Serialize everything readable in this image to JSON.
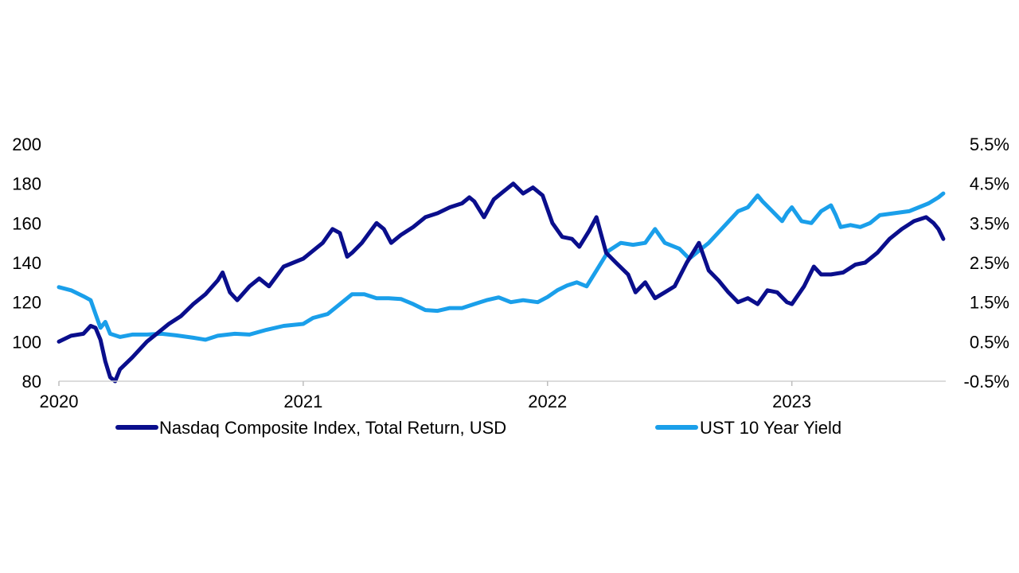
{
  "chart_data": {
    "type": "line",
    "title": "",
    "xlabel": "",
    "ylabel": "",
    "x_tick_labels": [
      "2020",
      "2021",
      "2022",
      "2023"
    ],
    "x_ticks": [
      2020,
      2021,
      2022,
      2023
    ],
    "xlim": [
      2020,
      2023.63
    ],
    "y_left": {
      "ylim": [
        80,
        200
      ],
      "ticks": [
        80,
        100,
        120,
        140,
        160,
        180,
        200
      ],
      "tick_labels": [
        "80",
        "100",
        "120",
        "140",
        "160",
        "180",
        "200"
      ]
    },
    "y_right": {
      "ylim": [
        -0.5,
        5.5
      ],
      "ticks": [
        -0.5,
        0.5,
        1.5,
        2.5,
        3.5,
        4.5,
        5.5
      ],
      "tick_labels": [
        "-0.5%",
        "0.5%",
        "1.5%",
        "2.5%",
        "3.5%",
        "4.5%",
        "5.5%"
      ]
    },
    "legend_position": "bottom",
    "series": [
      {
        "name": "Nasdaq Composite Index, Total Return, USD",
        "axis": "left",
        "color": "#0A0E8C",
        "points": [
          [
            2020.0,
            100
          ],
          [
            2020.05,
            103
          ],
          [
            2020.1,
            104
          ],
          [
            2020.13,
            108
          ],
          [
            2020.15,
            107
          ],
          [
            2020.17,
            101
          ],
          [
            2020.19,
            90
          ],
          [
            2020.21,
            82
          ],
          [
            2020.23,
            80
          ],
          [
            2020.25,
            86
          ],
          [
            2020.3,
            92
          ],
          [
            2020.36,
            100
          ],
          [
            2020.4,
            104
          ],
          [
            2020.45,
            109
          ],
          [
            2020.5,
            113
          ],
          [
            2020.55,
            119
          ],
          [
            2020.6,
            124
          ],
          [
            2020.65,
            131
          ],
          [
            2020.67,
            135
          ],
          [
            2020.7,
            125
          ],
          [
            2020.73,
            121
          ],
          [
            2020.78,
            128
          ],
          [
            2020.82,
            132
          ],
          [
            2020.86,
            128
          ],
          [
            2020.92,
            138
          ],
          [
            2021.0,
            142
          ],
          [
            2021.04,
            146
          ],
          [
            2021.08,
            150
          ],
          [
            2021.12,
            157
          ],
          [
            2021.15,
            155
          ],
          [
            2021.18,
            143
          ],
          [
            2021.2,
            145
          ],
          [
            2021.24,
            150
          ],
          [
            2021.27,
            155
          ],
          [
            2021.3,
            160
          ],
          [
            2021.33,
            157
          ],
          [
            2021.36,
            150
          ],
          [
            2021.4,
            154
          ],
          [
            2021.45,
            158
          ],
          [
            2021.5,
            163
          ],
          [
            2021.55,
            165
          ],
          [
            2021.6,
            168
          ],
          [
            2021.65,
            170
          ],
          [
            2021.68,
            173
          ],
          [
            2021.7,
            171
          ],
          [
            2021.74,
            163
          ],
          [
            2021.78,
            172
          ],
          [
            2021.82,
            176
          ],
          [
            2021.86,
            180
          ],
          [
            2021.9,
            175
          ],
          [
            2021.94,
            178
          ],
          [
            2021.98,
            174
          ],
          [
            2022.02,
            160
          ],
          [
            2022.06,
            153
          ],
          [
            2022.1,
            152
          ],
          [
            2022.13,
            148
          ],
          [
            2022.17,
            156
          ],
          [
            2022.2,
            163
          ],
          [
            2022.24,
            145
          ],
          [
            2022.28,
            140
          ],
          [
            2022.33,
            134
          ],
          [
            2022.36,
            125
          ],
          [
            2022.4,
            130
          ],
          [
            2022.44,
            122
          ],
          [
            2022.48,
            125
          ],
          [
            2022.52,
            128
          ],
          [
            2022.57,
            140
          ],
          [
            2022.62,
            150
          ],
          [
            2022.66,
            136
          ],
          [
            2022.7,
            131
          ],
          [
            2022.74,
            125
          ],
          [
            2022.78,
            120
          ],
          [
            2022.82,
            122
          ],
          [
            2022.86,
            119
          ],
          [
            2022.9,
            126
          ],
          [
            2022.94,
            125
          ],
          [
            2022.98,
            120
          ],
          [
            2023.0,
            119
          ],
          [
            2023.05,
            128
          ],
          [
            2023.09,
            138
          ],
          [
            2023.12,
            134
          ],
          [
            2023.16,
            134
          ],
          [
            2023.21,
            135
          ],
          [
            2023.26,
            139
          ],
          [
            2023.3,
            140
          ],
          [
            2023.35,
            145
          ],
          [
            2023.4,
            152
          ],
          [
            2023.45,
            157
          ],
          [
            2023.5,
            161
          ],
          [
            2023.55,
            163
          ],
          [
            2023.58,
            160
          ],
          [
            2023.6,
            157
          ],
          [
            2023.62,
            152
          ]
        ]
      },
      {
        "name": "UST 10 Year Yield",
        "axis": "right",
        "color": "#1A9FEA",
        "points": [
          [
            2020.0,
            1.88
          ],
          [
            2020.05,
            1.8
          ],
          [
            2020.1,
            1.65
          ],
          [
            2020.13,
            1.55
          ],
          [
            2020.15,
            1.2
          ],
          [
            2020.17,
            0.85
          ],
          [
            2020.19,
            1.0
          ],
          [
            2020.21,
            0.7
          ],
          [
            2020.25,
            0.62
          ],
          [
            2020.3,
            0.68
          ],
          [
            2020.36,
            0.68
          ],
          [
            2020.42,
            0.7
          ],
          [
            2020.48,
            0.66
          ],
          [
            2020.55,
            0.6
          ],
          [
            2020.6,
            0.55
          ],
          [
            2020.65,
            0.65
          ],
          [
            2020.72,
            0.7
          ],
          [
            2020.78,
            0.68
          ],
          [
            2020.85,
            0.8
          ],
          [
            2020.92,
            0.9
          ],
          [
            2021.0,
            0.95
          ],
          [
            2021.04,
            1.1
          ],
          [
            2021.1,
            1.2
          ],
          [
            2021.16,
            1.5
          ],
          [
            2021.2,
            1.7
          ],
          [
            2021.25,
            1.7
          ],
          [
            2021.3,
            1.6
          ],
          [
            2021.35,
            1.6
          ],
          [
            2021.4,
            1.58
          ],
          [
            2021.45,
            1.45
          ],
          [
            2021.5,
            1.3
          ],
          [
            2021.55,
            1.28
          ],
          [
            2021.6,
            1.35
          ],
          [
            2021.65,
            1.35
          ],
          [
            2021.7,
            1.45
          ],
          [
            2021.75,
            1.55
          ],
          [
            2021.8,
            1.62
          ],
          [
            2021.85,
            1.5
          ],
          [
            2021.9,
            1.55
          ],
          [
            2021.96,
            1.5
          ],
          [
            2022.0,
            1.63
          ],
          [
            2022.04,
            1.8
          ],
          [
            2022.08,
            1.92
          ],
          [
            2022.12,
            2.0
          ],
          [
            2022.16,
            1.9
          ],
          [
            2022.2,
            2.3
          ],
          [
            2022.25,
            2.8
          ],
          [
            2022.3,
            3.0
          ],
          [
            2022.35,
            2.95
          ],
          [
            2022.4,
            3.0
          ],
          [
            2022.44,
            3.35
          ],
          [
            2022.48,
            3.0
          ],
          [
            2022.54,
            2.85
          ],
          [
            2022.58,
            2.6
          ],
          [
            2022.62,
            2.8
          ],
          [
            2022.66,
            3.0
          ],
          [
            2022.72,
            3.4
          ],
          [
            2022.78,
            3.8
          ],
          [
            2022.82,
            3.9
          ],
          [
            2022.86,
            4.2
          ],
          [
            2022.88,
            4.05
          ],
          [
            2022.92,
            3.8
          ],
          [
            2022.96,
            3.55
          ],
          [
            2022.98,
            3.75
          ],
          [
            2023.0,
            3.9
          ],
          [
            2023.04,
            3.55
          ],
          [
            2023.08,
            3.5
          ],
          [
            2023.12,
            3.8
          ],
          [
            2023.16,
            3.95
          ],
          [
            2023.18,
            3.7
          ],
          [
            2023.2,
            3.4
          ],
          [
            2023.24,
            3.45
          ],
          [
            2023.28,
            3.4
          ],
          [
            2023.32,
            3.5
          ],
          [
            2023.36,
            3.7
          ],
          [
            2023.42,
            3.75
          ],
          [
            2023.48,
            3.8
          ],
          [
            2023.52,
            3.9
          ],
          [
            2023.56,
            4.0
          ],
          [
            2023.6,
            4.15
          ],
          [
            2023.62,
            4.25
          ]
        ]
      }
    ]
  }
}
